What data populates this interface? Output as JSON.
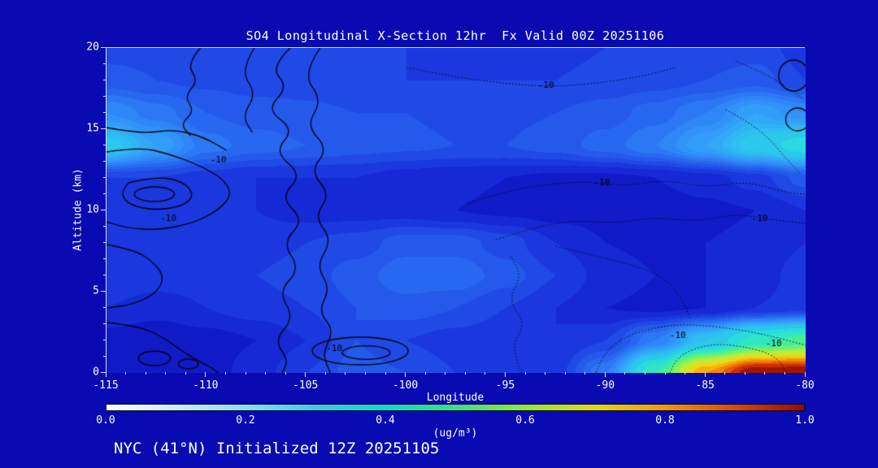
{
  "title": "SO4 Longitudinal X-Section 12hr  Fx Valid 00Z 20251106",
  "footer": "NYC (41°N) Initialized 12Z 20251105",
  "axes": {
    "xlabel": "Longitude",
    "ylabel": "Altitude (km)",
    "x_ticks": [
      "-115",
      "-110",
      "-105",
      "-100",
      "-95",
      "-90",
      "-85",
      "-80"
    ],
    "y_ticks": [
      "0",
      "5",
      "10",
      "15",
      "20"
    ]
  },
  "colorbar": {
    "label": "(ug/m³)",
    "ticks": [
      "0.0",
      "0.2",
      "0.4",
      "0.6",
      "0.8",
      "1.0"
    ],
    "colors": [
      "#ffffff",
      "#c8ecf8",
      "#8cdcf4",
      "#3cc8ec",
      "#10d8c8",
      "#38e088",
      "#90e838",
      "#e0d810",
      "#f49800",
      "#e04800",
      "#9c0800"
    ]
  },
  "chart_data": {
    "type": "heatmap",
    "title": "SO4 Longitudinal X-Section 12hr  Fx Valid 00Z 20251106",
    "xlabel": "Longitude",
    "ylabel": "Altitude (km)",
    "units": "ug/m3",
    "xlim": [
      -115,
      -80
    ],
    "ylim": [
      0,
      20
    ],
    "x_ticks": [
      -115,
      -110,
      -105,
      -100,
      -95,
      -90,
      -85,
      -80
    ],
    "y_ticks": [
      0,
      5,
      10,
      15,
      20
    ],
    "colorbar_range": [
      0.0,
      1.0
    ],
    "x": [
      -115,
      -112.5,
      -110,
      -107.5,
      -105,
      -102.5,
      -100,
      -97.5,
      -95,
      -92.5,
      -90,
      -87.5,
      -85,
      -82.5,
      -80
    ],
    "y": [
      0,
      2,
      4,
      6,
      8,
      10,
      12,
      14,
      16,
      18,
      20
    ],
    "values": [
      [
        0.06,
        0.04,
        0.05,
        0.07,
        0.1,
        0.13,
        0.12,
        0.1,
        0.08,
        0.09,
        0.18,
        0.45,
        0.8,
        1.0,
        1.0
      ],
      [
        0.05,
        0.04,
        0.05,
        0.06,
        0.08,
        0.12,
        0.1,
        0.09,
        0.08,
        0.08,
        0.1,
        0.18,
        0.3,
        0.42,
        0.48
      ],
      [
        0.08,
        0.07,
        0.08,
        0.09,
        0.1,
        0.12,
        0.13,
        0.12,
        0.1,
        0.08,
        0.06,
        0.055,
        0.06,
        0.08,
        0.09
      ],
      [
        0.1,
        0.09,
        0.09,
        0.1,
        0.11,
        0.13,
        0.155,
        0.155,
        0.13,
        0.1,
        0.07,
        0.06,
        0.06,
        0.07,
        0.09
      ],
      [
        0.1,
        0.09,
        0.09,
        0.09,
        0.1,
        0.11,
        0.13,
        0.13,
        0.11,
        0.08,
        0.06,
        0.055,
        0.06,
        0.065,
        0.08
      ],
      [
        0.08,
        0.08,
        0.08,
        0.08,
        0.07,
        0.07,
        0.07,
        0.06,
        0.055,
        0.05,
        0.05,
        0.05,
        0.055,
        0.06,
        0.08
      ],
      [
        0.1,
        0.1,
        0.09,
        0.08,
        0.08,
        0.08,
        0.07,
        0.065,
        0.06,
        0.055,
        0.055,
        0.06,
        0.07,
        0.09,
        0.13
      ],
      [
        0.32,
        0.24,
        0.17,
        0.15,
        0.14,
        0.13,
        0.125,
        0.12,
        0.12,
        0.13,
        0.15,
        0.18,
        0.24,
        0.32,
        0.38
      ],
      [
        0.2,
        0.17,
        0.14,
        0.13,
        0.125,
        0.12,
        0.12,
        0.115,
        0.115,
        0.12,
        0.13,
        0.15,
        0.18,
        0.24,
        0.2
      ],
      [
        0.13,
        0.12,
        0.115,
        0.11,
        0.11,
        0.105,
        0.1,
        0.1,
        0.1,
        0.1,
        0.105,
        0.11,
        0.12,
        0.13,
        0.1
      ],
      [
        0.11,
        0.11,
        0.105,
        0.1,
        0.1,
        0.1,
        0.1,
        0.095,
        0.095,
        0.095,
        0.1,
        0.1,
        0.105,
        0.11,
        0.09
      ]
    ],
    "fill_stops": [
      [
        0.0,
        "#0909a6"
      ],
      [
        0.04,
        "#0e14c0"
      ],
      [
        0.06,
        "#1322ce"
      ],
      [
        0.08,
        "#1830da"
      ],
      [
        0.1,
        "#1d40e2"
      ],
      [
        0.12,
        "#2252ea"
      ],
      [
        0.15,
        "#2868f0"
      ],
      [
        0.18,
        "#2e80f6"
      ],
      [
        0.22,
        "#3398fa"
      ],
      [
        0.26,
        "#32aef6"
      ],
      [
        0.3,
        "#2cc4ee"
      ],
      [
        0.35,
        "#28d8e2"
      ],
      [
        0.4,
        "#2ce4cc"
      ],
      [
        0.45,
        "#40eca6"
      ],
      [
        0.5,
        "#64f078"
      ],
      [
        0.6,
        "#b2f03e"
      ],
      [
        0.7,
        "#eedc18"
      ],
      [
        0.78,
        "#f6a406"
      ],
      [
        0.85,
        "#ea6200"
      ],
      [
        0.92,
        "#c62600"
      ],
      [
        1.0,
        "#7a0404"
      ]
    ],
    "contours": {
      "solid": [
        {
          "pts": [
            [
              -105.8,
              20
            ],
            [
              -106.8,
              18.8
            ],
            [
              -105.9,
              17.6
            ],
            [
              -107.0,
              16.2
            ],
            [
              -105.6,
              15.0
            ],
            [
              -106.6,
              13.6
            ],
            [
              -105.2,
              12.2
            ],
            [
              -106.3,
              10.8
            ],
            [
              -105.1,
              9.4
            ],
            [
              -106.2,
              8.0
            ],
            [
              -105.3,
              6.4
            ],
            [
              -106.4,
              5.0
            ],
            [
              -105.6,
              3.4
            ],
            [
              -106.6,
              2.0
            ],
            [
              -105.9,
              0.8
            ],
            [
              -106.2,
              0
            ]
          ]
        },
        {
          "pts": [
            [
              -104.3,
              20
            ],
            [
              -105.2,
              18.4
            ],
            [
              -104.2,
              16.8
            ],
            [
              -105.0,
              15.2
            ],
            [
              -103.9,
              13.8
            ],
            [
              -104.8,
              12.4
            ],
            [
              -103.8,
              11.0
            ],
            [
              -104.6,
              9.6
            ],
            [
              -103.7,
              8.2
            ],
            [
              -104.5,
              6.6
            ],
            [
              -103.8,
              5.2
            ],
            [
              -104.4,
              3.8
            ],
            [
              -103.6,
              2.6
            ],
            [
              -104.2,
              1.2
            ],
            [
              -103.8,
              0
            ]
          ]
        },
        {
          "pts": [
            [
              -110.3,
              20
            ],
            [
              -111.0,
              19.0
            ],
            [
              -110.4,
              18.0
            ],
            [
              -111.1,
              17.0
            ],
            [
              -110.6,
              16.1
            ],
            [
              -111.3,
              15.3
            ],
            [
              -110.8,
              14.6
            ]
          ]
        },
        {
          "pts": [
            [
              -107.6,
              20
            ],
            [
              -108.3,
              18.6
            ],
            [
              -107.5,
              17.2
            ],
            [
              -108.2,
              15.8
            ],
            [
              -107.7,
              14.8
            ]
          ]
        },
        {
          "pts": [
            [
              -115,
              13.6
            ],
            [
              -113.4,
              13.9
            ],
            [
              -111.9,
              13.5
            ],
            [
              -110.4,
              12.8
            ],
            [
              -109.2,
              12.0
            ],
            [
              -108.7,
              11.0
            ],
            [
              -109.4,
              10.0
            ],
            [
              -110.7,
              9.2
            ],
            [
              -112.4,
              8.8
            ],
            [
              -113.9,
              8.9
            ],
            [
              -115,
              9.3
            ]
          ]
        },
        {
          "pts": [
            [
              -113.9,
              11.7
            ],
            [
              -112.5,
              12.1
            ],
            [
              -111.2,
              11.8
            ],
            [
              -110.6,
              11.0
            ],
            [
              -111.1,
              10.3
            ],
            [
              -112.5,
              10.0
            ],
            [
              -113.8,
              10.3
            ],
            [
              -114.3,
              11.0
            ],
            [
              -113.9,
              11.7
            ]
          ]
        },
        {
          "ellipse": [
            -112.6,
            11.0,
            1.0,
            0.45
          ]
        },
        {
          "pts": [
            [
              -115,
              7.9
            ],
            [
              -113.7,
              7.6
            ],
            [
              -112.7,
              6.9
            ],
            [
              -112.1,
              5.9
            ],
            [
              -112.5,
              4.9
            ],
            [
              -113.7,
              4.2
            ],
            [
              -115,
              4.0
            ]
          ]
        },
        {
          "pts": [
            [
              -115,
              3.1
            ],
            [
              -113.5,
              2.9
            ],
            [
              -112.3,
              2.3
            ],
            [
              -111.4,
              1.5
            ],
            [
              -110.5,
              0.8
            ],
            [
              -109.7,
              0.3
            ],
            [
              -109.4,
              0
            ]
          ]
        },
        {
          "pts": [
            [
              -115,
              15.1
            ],
            [
              -113.3,
              14.7
            ],
            [
              -111.6,
              15.0
            ],
            [
              -110.1,
              14.5
            ],
            [
              -109.0,
              13.7
            ]
          ]
        },
        {
          "ellipse": [
            -112.6,
            0.9,
            0.8,
            0.45
          ]
        },
        {
          "ellipse": [
            -110.9,
            0.55,
            0.5,
            0.3
          ]
        },
        {
          "ellipse": [
            -102.3,
            1.35,
            2.4,
            0.85
          ]
        },
        {
          "ellipse": [
            -102.0,
            1.25,
            1.2,
            0.42
          ]
        },
        {
          "ellipse": [
            -80.6,
            18.3,
            0.75,
            0.95
          ]
        },
        {
          "ellipse": [
            -80.4,
            15.6,
            0.6,
            0.7
          ]
        }
      ],
      "dotted": [
        {
          "pts": [
            [
              -97,
              10.4
            ],
            [
              -95,
              11.2
            ],
            [
              -93,
              11.6
            ],
            [
              -91,
              11.8
            ],
            [
              -89,
              11.5
            ],
            [
              -87,
              11.9
            ],
            [
              -85,
              11.4
            ],
            [
              -83,
              11.8
            ],
            [
              -81,
              11.1
            ],
            [
              -80,
              11.0
            ]
          ]
        },
        {
          "pts": [
            [
              -95.5,
              8.2
            ],
            [
              -93.5,
              9.0
            ],
            [
              -91.5,
              9.4
            ],
            [
              -89.5,
              9.2
            ],
            [
              -87.5,
              9.6
            ],
            [
              -85.5,
              9.3
            ],
            [
              -83.5,
              9.8
            ],
            [
              -81.5,
              9.4
            ],
            [
              -80,
              9.2
            ]
          ]
        },
        {
          "pts": [
            [
              -100,
              18.8
            ],
            [
              -97.5,
              18.2
            ],
            [
              -95,
              17.8
            ],
            [
              -92.5,
              17.6
            ],
            [
              -90,
              17.9
            ],
            [
              -88,
              18.3
            ],
            [
              -86.5,
              18.8
            ]
          ]
        },
        {
          "pts": [
            [
              -90.5,
              0
            ],
            [
              -90.2,
              1.0
            ],
            [
              -89.4,
              2.0
            ],
            [
              -88.2,
              2.6
            ],
            [
              -86.5,
              3.0
            ],
            [
              -84.8,
              2.9
            ],
            [
              -83.0,
              2.6
            ],
            [
              -81.5,
              2.2
            ],
            [
              -80,
              1.7
            ]
          ]
        },
        {
          "pts": [
            [
              -86.8,
              0
            ],
            [
              -86.5,
              0.9
            ],
            [
              -85.6,
              1.5
            ],
            [
              -84.4,
              1.8
            ],
            [
              -83.0,
              1.6
            ],
            [
              -81.8,
              1.2
            ],
            [
              -81.2,
              0.6
            ],
            [
              -81.0,
              0
            ]
          ]
        },
        {
          "pts": [
            [
              -94.2,
              0
            ],
            [
              -94.8,
              1.5
            ],
            [
              -94.0,
              3.0
            ],
            [
              -94.9,
              4.5
            ],
            [
              -94.2,
              6.0
            ],
            [
              -94.8,
              7.2
            ]
          ]
        },
        {
          "pts": [
            [
              -92.5,
              7.8
            ],
            [
              -90.5,
              7.2
            ],
            [
              -88.5,
              6.6
            ],
            [
              -87.0,
              5.8
            ],
            [
              -86.2,
              4.6
            ],
            [
              -85.8,
              3.4
            ]
          ]
        },
        {
          "pts": [
            [
              -84,
              16.2
            ],
            [
              -82.8,
              15.4
            ],
            [
              -81.8,
              14.4
            ],
            [
              -81.0,
              13.2
            ],
            [
              -80.2,
              12.2
            ]
          ]
        },
        {
          "pts": [
            [
              -83.5,
              19.2
            ],
            [
              -82.0,
              18.4
            ],
            [
              -80.8,
              17.5
            ],
            [
              -80.1,
              16.8
            ]
          ]
        }
      ],
      "labels": [
        {
          "text": "-10",
          "x": -109.4,
          "y": 13.1,
          "style": "solid"
        },
        {
          "text": "-10",
          "x": -111.9,
          "y": 9.5,
          "style": "solid"
        },
        {
          "text": "-10",
          "x": -103.6,
          "y": 1.5,
          "style": "solid"
        },
        {
          "text": "-10",
          "x": -93.0,
          "y": 17.7,
          "style": "dotted"
        },
        {
          "text": "-10",
          "x": -90.2,
          "y": 11.7,
          "style": "dotted"
        },
        {
          "text": "-10",
          "x": -82.3,
          "y": 9.5,
          "style": "dotted"
        },
        {
          "text": "-10",
          "x": -86.4,
          "y": 2.3,
          "style": "dotted"
        },
        {
          "text": "-10",
          "x": -81.6,
          "y": 1.8,
          "style": "dotted"
        }
      ]
    }
  }
}
